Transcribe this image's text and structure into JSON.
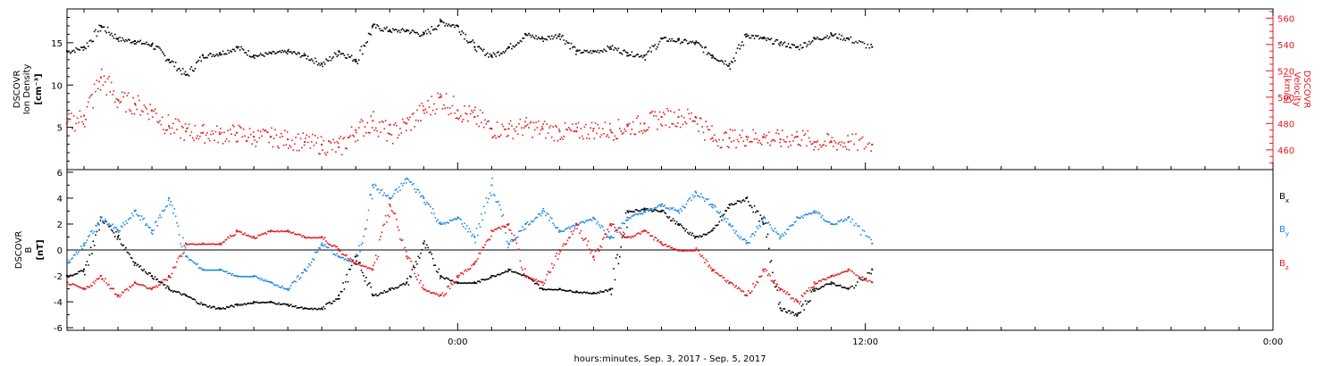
{
  "figure": {
    "xlabel": "hours:minutes, Sep.  3, 2017 - Sep.  5, 2017",
    "xticks": [
      "0:00",
      "12:00",
      "0:00"
    ]
  },
  "colors": {
    "black": "#000000",
    "red": "#e41a1c",
    "blue": "#1e88e5"
  },
  "chart_data": [
    {
      "type": "scatter",
      "panel": "top",
      "ylabel_left": [
        "DSCOVR",
        "Ion Density",
        "[cm⁻³]"
      ],
      "ylabel_right": [
        "DSCOVR",
        "Velocity",
        "[km/s]"
      ],
      "ylim_left": [
        0,
        19
      ],
      "yticks_left": [
        "5",
        "10",
        "15"
      ],
      "ylim_right": [
        445,
        567
      ],
      "yticks_right": [
        "460",
        "480",
        "500",
        "520",
        "540",
        "560"
      ],
      "x_unit": "hours from 0:00 Sep 4, 2017",
      "xlim": [
        -11.5,
        24.0
      ],
      "series": [
        {
          "name": "Ion Density",
          "axis": "left",
          "color": "#000000",
          "x": [
            -11.5,
            -11.0,
            -10.5,
            -10.0,
            -9.5,
            -9.0,
            -8.5,
            -8.0,
            -7.5,
            -7.0,
            -6.5,
            -6.0,
            -5.5,
            -5.0,
            -4.5,
            -4.0,
            -3.5,
            -3.0,
            -2.5,
            -2.0,
            -1.5,
            -1.0,
            -0.5,
            0.0,
            0.5,
            1.0,
            1.5,
            2.0,
            2.5,
            3.0,
            3.5,
            4.0,
            4.5,
            5.0,
            5.5,
            6.0,
            6.5,
            7.0,
            7.5,
            8.0,
            8.5,
            9.0,
            9.5,
            10.0,
            10.5,
            11.0,
            11.5,
            12.2
          ],
          "y": [
            14.0,
            14.5,
            17.0,
            15.5,
            15.2,
            14.8,
            13.0,
            11.2,
            13.5,
            13.8,
            14.5,
            13.5,
            13.8,
            14.0,
            13.5,
            12.5,
            14.0,
            13.0,
            17.0,
            16.5,
            16.5,
            16.0,
            17.5,
            17.0,
            14.5,
            13.5,
            14.5,
            16.0,
            15.5,
            16.0,
            14.0,
            14.0,
            14.5,
            13.8,
            13.5,
            15.5,
            15.3,
            15.0,
            13.5,
            12.5,
            16.0,
            15.5,
            15.0,
            14.5,
            15.5,
            16.0,
            15.5,
            14.5
          ]
        },
        {
          "name": "Velocity",
          "axis": "right",
          "color": "#e41a1c",
          "x": [
            -11.5,
            -11.0,
            -10.5,
            -10.0,
            -9.5,
            -9.0,
            -8.5,
            -8.0,
            -7.5,
            -7.0,
            -6.5,
            -6.0,
            -5.5,
            -5.0,
            -4.5,
            -4.0,
            -3.5,
            -3.0,
            -2.5,
            -2.0,
            -1.5,
            -1.0,
            -0.5,
            0.0,
            0.5,
            1.0,
            1.5,
            2.0,
            2.5,
            3.0,
            3.5,
            4.0,
            4.5,
            5.0,
            5.5,
            6.0,
            6.5,
            7.0,
            7.5,
            8.0,
            8.5,
            9.0,
            9.5,
            10.0,
            10.5,
            11.0,
            11.5,
            12.2
          ],
          "y": [
            480,
            486,
            515,
            498,
            495,
            490,
            478,
            474,
            473,
            472,
            473,
            470,
            470,
            468,
            466,
            464,
            462,
            475,
            482,
            472,
            480,
            490,
            500,
            490,
            485,
            476,
            476,
            478,
            476,
            474,
            474,
            476,
            475,
            478,
            480,
            485,
            485,
            485,
            469,
            469,
            470,
            470,
            468,
            470,
            466,
            466,
            466,
            464
          ]
        }
      ]
    },
    {
      "type": "scatter",
      "panel": "bottom",
      "ylabel_left": [
        "DSCOVR",
        "B",
        "[nT]"
      ],
      "ylim": [
        -6.2,
        6.2
      ],
      "yticks": [
        "-6",
        "-4",
        "-2",
        "0",
        "2",
        "4",
        "6"
      ],
      "x_unit": "hours from 0:00 Sep 4, 2017",
      "xlim": [
        -11.5,
        24.0
      ],
      "legend_labels": [
        {
          "main": "B",
          "sub": "x",
          "color": "#000000"
        },
        {
          "main": "B",
          "sub": "y",
          "color": "#1e88e5"
        },
        {
          "main": "B",
          "sub": "z",
          "color": "#e41a1c"
        }
      ],
      "series": [
        {
          "name": "Bx",
          "color": "#000000",
          "x": [
            -11.5,
            -11.0,
            -10.5,
            -10.0,
            -9.5,
            -9.0,
            -8.5,
            -8.0,
            -7.5,
            -7.0,
            -6.5,
            -6.0,
            -5.5,
            -5.0,
            -4.5,
            -4.0,
            -3.5,
            -3.0,
            -2.5,
            -2.0,
            -1.5,
            -1.0,
            -0.5,
            0.0,
            0.5,
            1.0,
            1.5,
            2.0,
            2.5,
            3.0,
            3.5,
            4.0,
            4.5,
            5.0,
            5.5,
            6.0,
            6.5,
            7.0,
            7.5,
            8.0,
            8.5,
            9.0,
            9.5,
            10.0,
            10.5,
            11.0,
            11.5,
            12.2
          ],
          "y": [
            -2.0,
            -1.5,
            2.5,
            1.0,
            -1.0,
            -2.0,
            -3.0,
            -3.5,
            -4.2,
            -4.5,
            -4.2,
            -4.0,
            -4.0,
            -4.2,
            -4.5,
            -4.5,
            -3.5,
            -0.5,
            -3.5,
            -3.0,
            -2.5,
            0.5,
            -2.0,
            -2.5,
            -2.5,
            -2.0,
            -1.5,
            -2.0,
            -3.0,
            -3.0,
            -3.2,
            -3.3,
            -3.0,
            3.0,
            3.2,
            3.0,
            2.0,
            1.0,
            1.5,
            3.5,
            4.0,
            2.0,
            -4.5,
            -5.0,
            -3.0,
            -2.5,
            -3.0,
            -1.5
          ]
        },
        {
          "name": "By",
          "color": "#1e88e5",
          "x": [
            -11.5,
            -11.0,
            -10.5,
            -10.0,
            -9.5,
            -9.0,
            -8.5,
            -8.0,
            -7.5,
            -7.0,
            -6.5,
            -6.0,
            -5.5,
            -5.0,
            -4.5,
            -4.0,
            -3.5,
            -3.0,
            -2.5,
            -2.0,
            -1.5,
            -1.0,
            -0.5,
            0.0,
            0.5,
            1.0,
            1.5,
            2.0,
            2.5,
            3.0,
            3.5,
            4.0,
            4.5,
            5.0,
            5.5,
            6.0,
            6.5,
            7.0,
            7.5,
            8.0,
            8.5,
            9.0,
            9.5,
            10.0,
            10.5,
            11.0,
            11.5,
            12.2
          ],
          "y": [
            -1.0,
            0.5,
            2.5,
            1.5,
            3.0,
            1.5,
            4.0,
            -0.5,
            -1.5,
            -1.5,
            -2.0,
            -2.0,
            -2.5,
            -3.0,
            -1.5,
            0.5,
            -0.5,
            -1.0,
            5.0,
            4.0,
            5.5,
            4.0,
            2.0,
            2.5,
            1.0,
            5.0,
            0.5,
            2.0,
            3.0,
            1.5,
            2.0,
            2.5,
            1.0,
            2.5,
            3.0,
            3.5,
            3.0,
            4.5,
            3.5,
            2.0,
            0.5,
            2.5,
            1.0,
            2.5,
            3.0,
            2.0,
            2.5,
            0.5
          ]
        },
        {
          "name": "Bz",
          "color": "#e41a1c",
          "x": [
            -11.5,
            -11.0,
            -10.5,
            -10.0,
            -9.5,
            -9.0,
            -8.5,
            -8.0,
            -7.5,
            -7.0,
            -6.5,
            -6.0,
            -5.5,
            -5.0,
            -4.5,
            -4.0,
            -3.5,
            -3.0,
            -2.5,
            -2.0,
            -1.5,
            -1.0,
            -0.5,
            0.0,
            0.5,
            1.0,
            1.5,
            2.0,
            2.5,
            3.0,
            3.5,
            4.0,
            4.5,
            5.0,
            5.5,
            6.0,
            6.5,
            7.0,
            7.5,
            8.0,
            8.5,
            9.0,
            9.5,
            10.0,
            10.5,
            11.0,
            11.5,
            12.2
          ],
          "y": [
            -2.5,
            -3.0,
            -2.0,
            -3.5,
            -2.5,
            -3.0,
            -2.0,
            0.5,
            0.5,
            0.5,
            1.5,
            1.0,
            1.5,
            1.5,
            1.0,
            1.0,
            0.0,
            -1.0,
            -1.5,
            3.5,
            -0.5,
            -3.0,
            -3.5,
            -2.0,
            -1.0,
            1.5,
            2.0,
            -2.0,
            -2.5,
            0.0,
            2.0,
            -0.5,
            2.0,
            1.0,
            1.5,
            0.5,
            0.0,
            0.0,
            -1.5,
            -2.5,
            -3.5,
            -1.5,
            -3.0,
            -4.0,
            -2.5,
            -2.0,
            -1.5,
            -2.5
          ]
        }
      ]
    }
  ]
}
